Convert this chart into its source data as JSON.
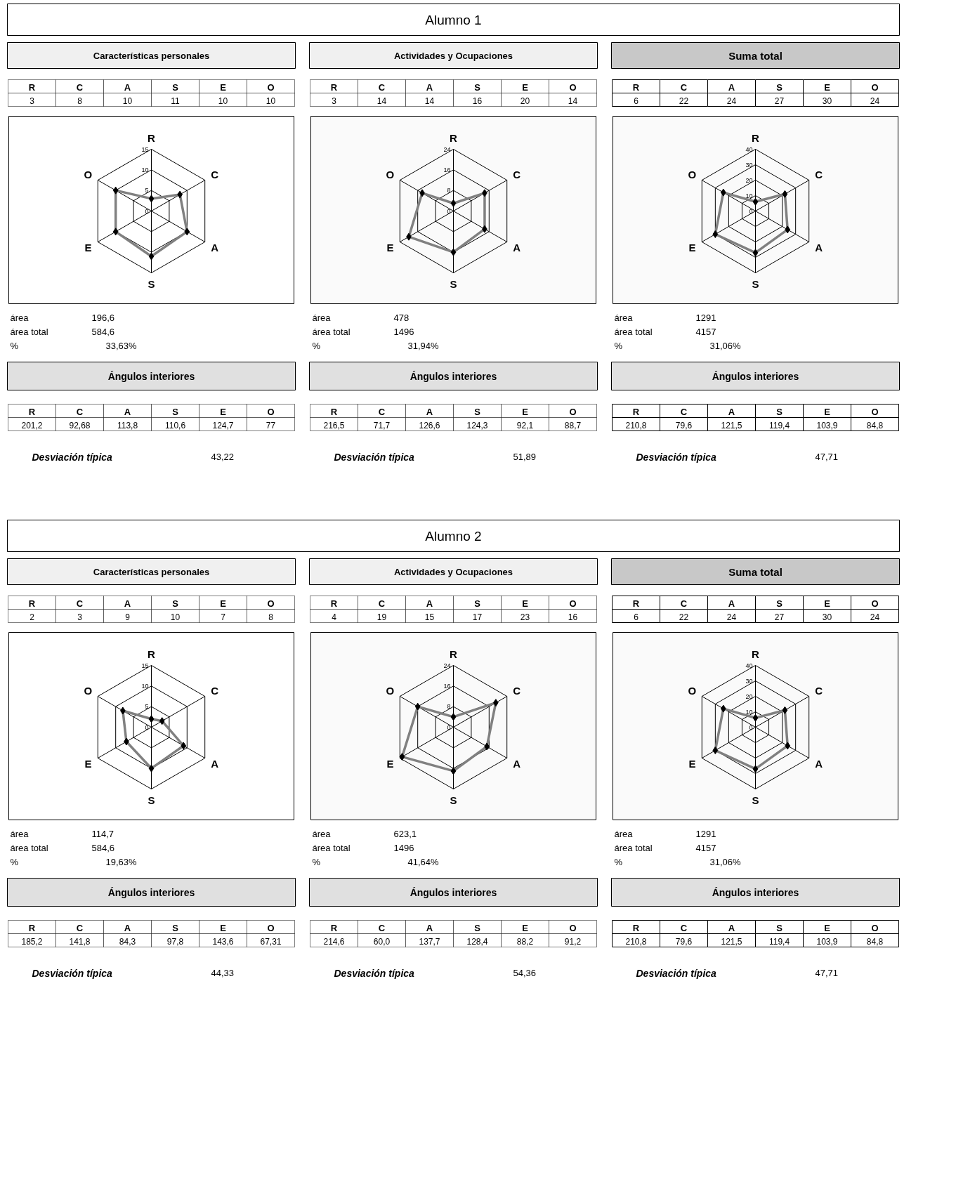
{
  "chart_data": [
    {
      "type": "other",
      "title": "Alumno 1"
    },
    {
      "type": "other",
      "title": "Características personales",
      "categories": [
        "R",
        "C",
        "A",
        "S",
        "E",
        "O"
      ],
      "values": [
        3,
        8,
        10,
        11,
        10,
        10
      ],
      "data_labels": true
    },
    {
      "type": "other",
      "title": "Actividades y Ocupaciones",
      "categories": [
        "R",
        "C",
        "A",
        "S",
        "E",
        "O"
      ],
      "values": [
        3,
        14,
        14,
        16,
        20,
        14
      ],
      "data_labels": true
    },
    {
      "type": "other",
      "title": "Suma total",
      "categories": [
        "R",
        "C",
        "A",
        "S",
        "E",
        "O"
      ],
      "values": [
        6,
        22,
        24,
        27,
        30,
        24
      ],
      "data_labels": true
    },
    {
      "type": "radar",
      "categories": [
        "R",
        "C",
        "A",
        "S",
        "E",
        "O"
      ],
      "series": [
        {
          "color": "#808080",
          "values": [
            3,
            8,
            10,
            11,
            10,
            10
          ]
        }
      ],
      "ylim": [
        0,
        15
      ],
      "yticks": [
        0,
        5,
        10,
        15
      ],
      "grid": true,
      "marker": "diamond",
      "annotations": [
        "área",
        "196,6",
        "área total",
        "584,6",
        "%",
        "33,63%"
      ]
    },
    {
      "type": "radar",
      "categories": [
        "R",
        "C",
        "A",
        "S",
        "E",
        "O"
      ],
      "series": [
        {
          "color": "#808080",
          "values": [
            3,
            14,
            14,
            16,
            20,
            14
          ]
        }
      ],
      "ylim": [
        0,
        24
      ],
      "yticks": [
        0,
        8,
        16,
        24
      ],
      "grid": true,
      "marker": "diamond",
      "annotations": [
        "área",
        "478",
        "área total",
        "1496",
        "%",
        "31,94%"
      ]
    },
    {
      "type": "radar",
      "categories": [
        "R",
        "C",
        "A",
        "S",
        "E",
        "O"
      ],
      "series": [
        {
          "color": "#808080",
          "values": [
            6,
            22,
            24,
            27,
            30,
            24
          ]
        }
      ],
      "ylim": [
        0,
        40
      ],
      "yticks": [
        0,
        10,
        20,
        30,
        40
      ],
      "grid": true,
      "marker": "diamond",
      "annotations": [
        "área",
        "1291",
        "área total",
        "4157",
        "%",
        "31,06%"
      ]
    },
    {
      "type": "other",
      "title": "Ángulos interiores",
      "categories": [
        "R",
        "C",
        "A",
        "S",
        "E",
        "O"
      ],
      "values": [
        201.2,
        92.68,
        113.8,
        110.6,
        124.7,
        77
      ],
      "value_labels": [
        "201,2",
        "92,68",
        "113,8",
        "110,6",
        "124,7",
        "77"
      ],
      "annotations": [
        "Desviación típica",
        "43,22"
      ]
    },
    {
      "type": "other",
      "title": "Ángulos interiores",
      "categories": [
        "R",
        "C",
        "A",
        "S",
        "E",
        "O"
      ],
      "values": [
        216.5,
        71.7,
        126.6,
        124.3,
        92.1,
        88.7
      ],
      "value_labels": [
        "216,5",
        "71,7",
        "126,6",
        "124,3",
        "92,1",
        "88,7"
      ],
      "annotations": [
        "Desviación típica",
        "51,89"
      ]
    },
    {
      "type": "other",
      "title": "Ángulos interiores",
      "categories": [
        "R",
        "C",
        "A",
        "S",
        "E",
        "O"
      ],
      "values": [
        210.8,
        79.6,
        121.5,
        119.4,
        103.9,
        84.8
      ],
      "value_labels": [
        "210,8",
        "79,6",
        "121,5",
        "119,4",
        "103,9",
        "84,8"
      ],
      "annotations": [
        "Desviación típica",
        "47,71"
      ]
    },
    {
      "type": "other",
      "title": "Alumno 2"
    },
    {
      "type": "other",
      "title": "Características personales",
      "categories": [
        "R",
        "C",
        "A",
        "S",
        "E",
        "O"
      ],
      "values": [
        2,
        3,
        9,
        10,
        7,
        8
      ],
      "data_labels": true
    },
    {
      "type": "other",
      "title": "Actividades y Ocupaciones",
      "categories": [
        "R",
        "C",
        "A",
        "S",
        "E",
        "O"
      ],
      "values": [
        4,
        19,
        15,
        17,
        23,
        16
      ],
      "data_labels": true
    },
    {
      "type": "other",
      "title": "Suma total",
      "categories": [
        "R",
        "C",
        "A",
        "S",
        "E",
        "O"
      ],
      "values": [
        6,
        22,
        24,
        27,
        30,
        24
      ],
      "data_labels": true
    },
    {
      "type": "radar",
      "categories": [
        "R",
        "C",
        "A",
        "S",
        "E",
        "O"
      ],
      "series": [
        {
          "color": "#808080",
          "values": [
            2,
            3,
            9,
            10,
            7,
            8
          ]
        }
      ],
      "ylim": [
        0,
        15
      ],
      "yticks": [
        0,
        5,
        10,
        15
      ],
      "grid": true,
      "marker": "diamond",
      "annotations": [
        "área",
        "114,7",
        "área total",
        "584,6",
        "%",
        "19,63%"
      ]
    },
    {
      "type": "radar",
      "categories": [
        "R",
        "C",
        "A",
        "S",
        "E",
        "O"
      ],
      "series": [
        {
          "color": "#808080",
          "values": [
            4,
            19,
            15,
            17,
            23,
            16
          ]
        }
      ],
      "ylim": [
        0,
        24
      ],
      "yticks": [
        0,
        8,
        16,
        24
      ],
      "grid": true,
      "marker": "diamond",
      "annotations": [
        "área",
        "623,1",
        "área total",
        "1496",
        "%",
        "41,64%"
      ]
    },
    {
      "type": "radar",
      "categories": [
        "R",
        "C",
        "A",
        "S",
        "E",
        "O"
      ],
      "series": [
        {
          "color": "#808080",
          "values": [
            6,
            22,
            24,
            27,
            30,
            24
          ]
        }
      ],
      "ylim": [
        0,
        40
      ],
      "yticks": [
        0,
        10,
        20,
        30,
        40
      ],
      "grid": true,
      "marker": "diamond",
      "annotations": [
        "área",
        "1291",
        "área total",
        "4157",
        "%",
        "31,06%"
      ]
    },
    {
      "type": "other",
      "title": "Ángulos interiores",
      "categories": [
        "R",
        "C",
        "A",
        "S",
        "E",
        "O"
      ],
      "values": [
        185.2,
        141.8,
        84.3,
        97.8,
        143.6,
        67.31
      ],
      "value_labels": [
        "185,2",
        "141,8",
        "84,3",
        "97,8",
        "143,6",
        "67,31"
      ],
      "annotations": [
        "Desviación típica",
        "44,33"
      ]
    },
    {
      "type": "other",
      "title": "Ángulos interiores",
      "categories": [
        "R",
        "C",
        "A",
        "S",
        "E",
        "O"
      ],
      "values": [
        214.6,
        60.0,
        137.7,
        128.4,
        88.2,
        91.2
      ],
      "value_labels": [
        "214,6",
        "60,0",
        "137,7",
        "128,4",
        "88,2",
        "91,2"
      ],
      "annotations": [
        "Desviación típica",
        "54,36"
      ]
    },
    {
      "type": "other",
      "title": "Ángulos interiores",
      "categories": [
        "R",
        "C",
        "A",
        "S",
        "E",
        "O"
      ],
      "values": [
        210.8,
        79.6,
        121.5,
        119.4,
        103.9,
        84.8
      ],
      "value_labels": [
        "210,8",
        "79,6",
        "121,5",
        "119,4",
        "103,9",
        "84,8"
      ],
      "annotations": [
        "Desviación típica",
        "47,71"
      ]
    }
  ]
}
